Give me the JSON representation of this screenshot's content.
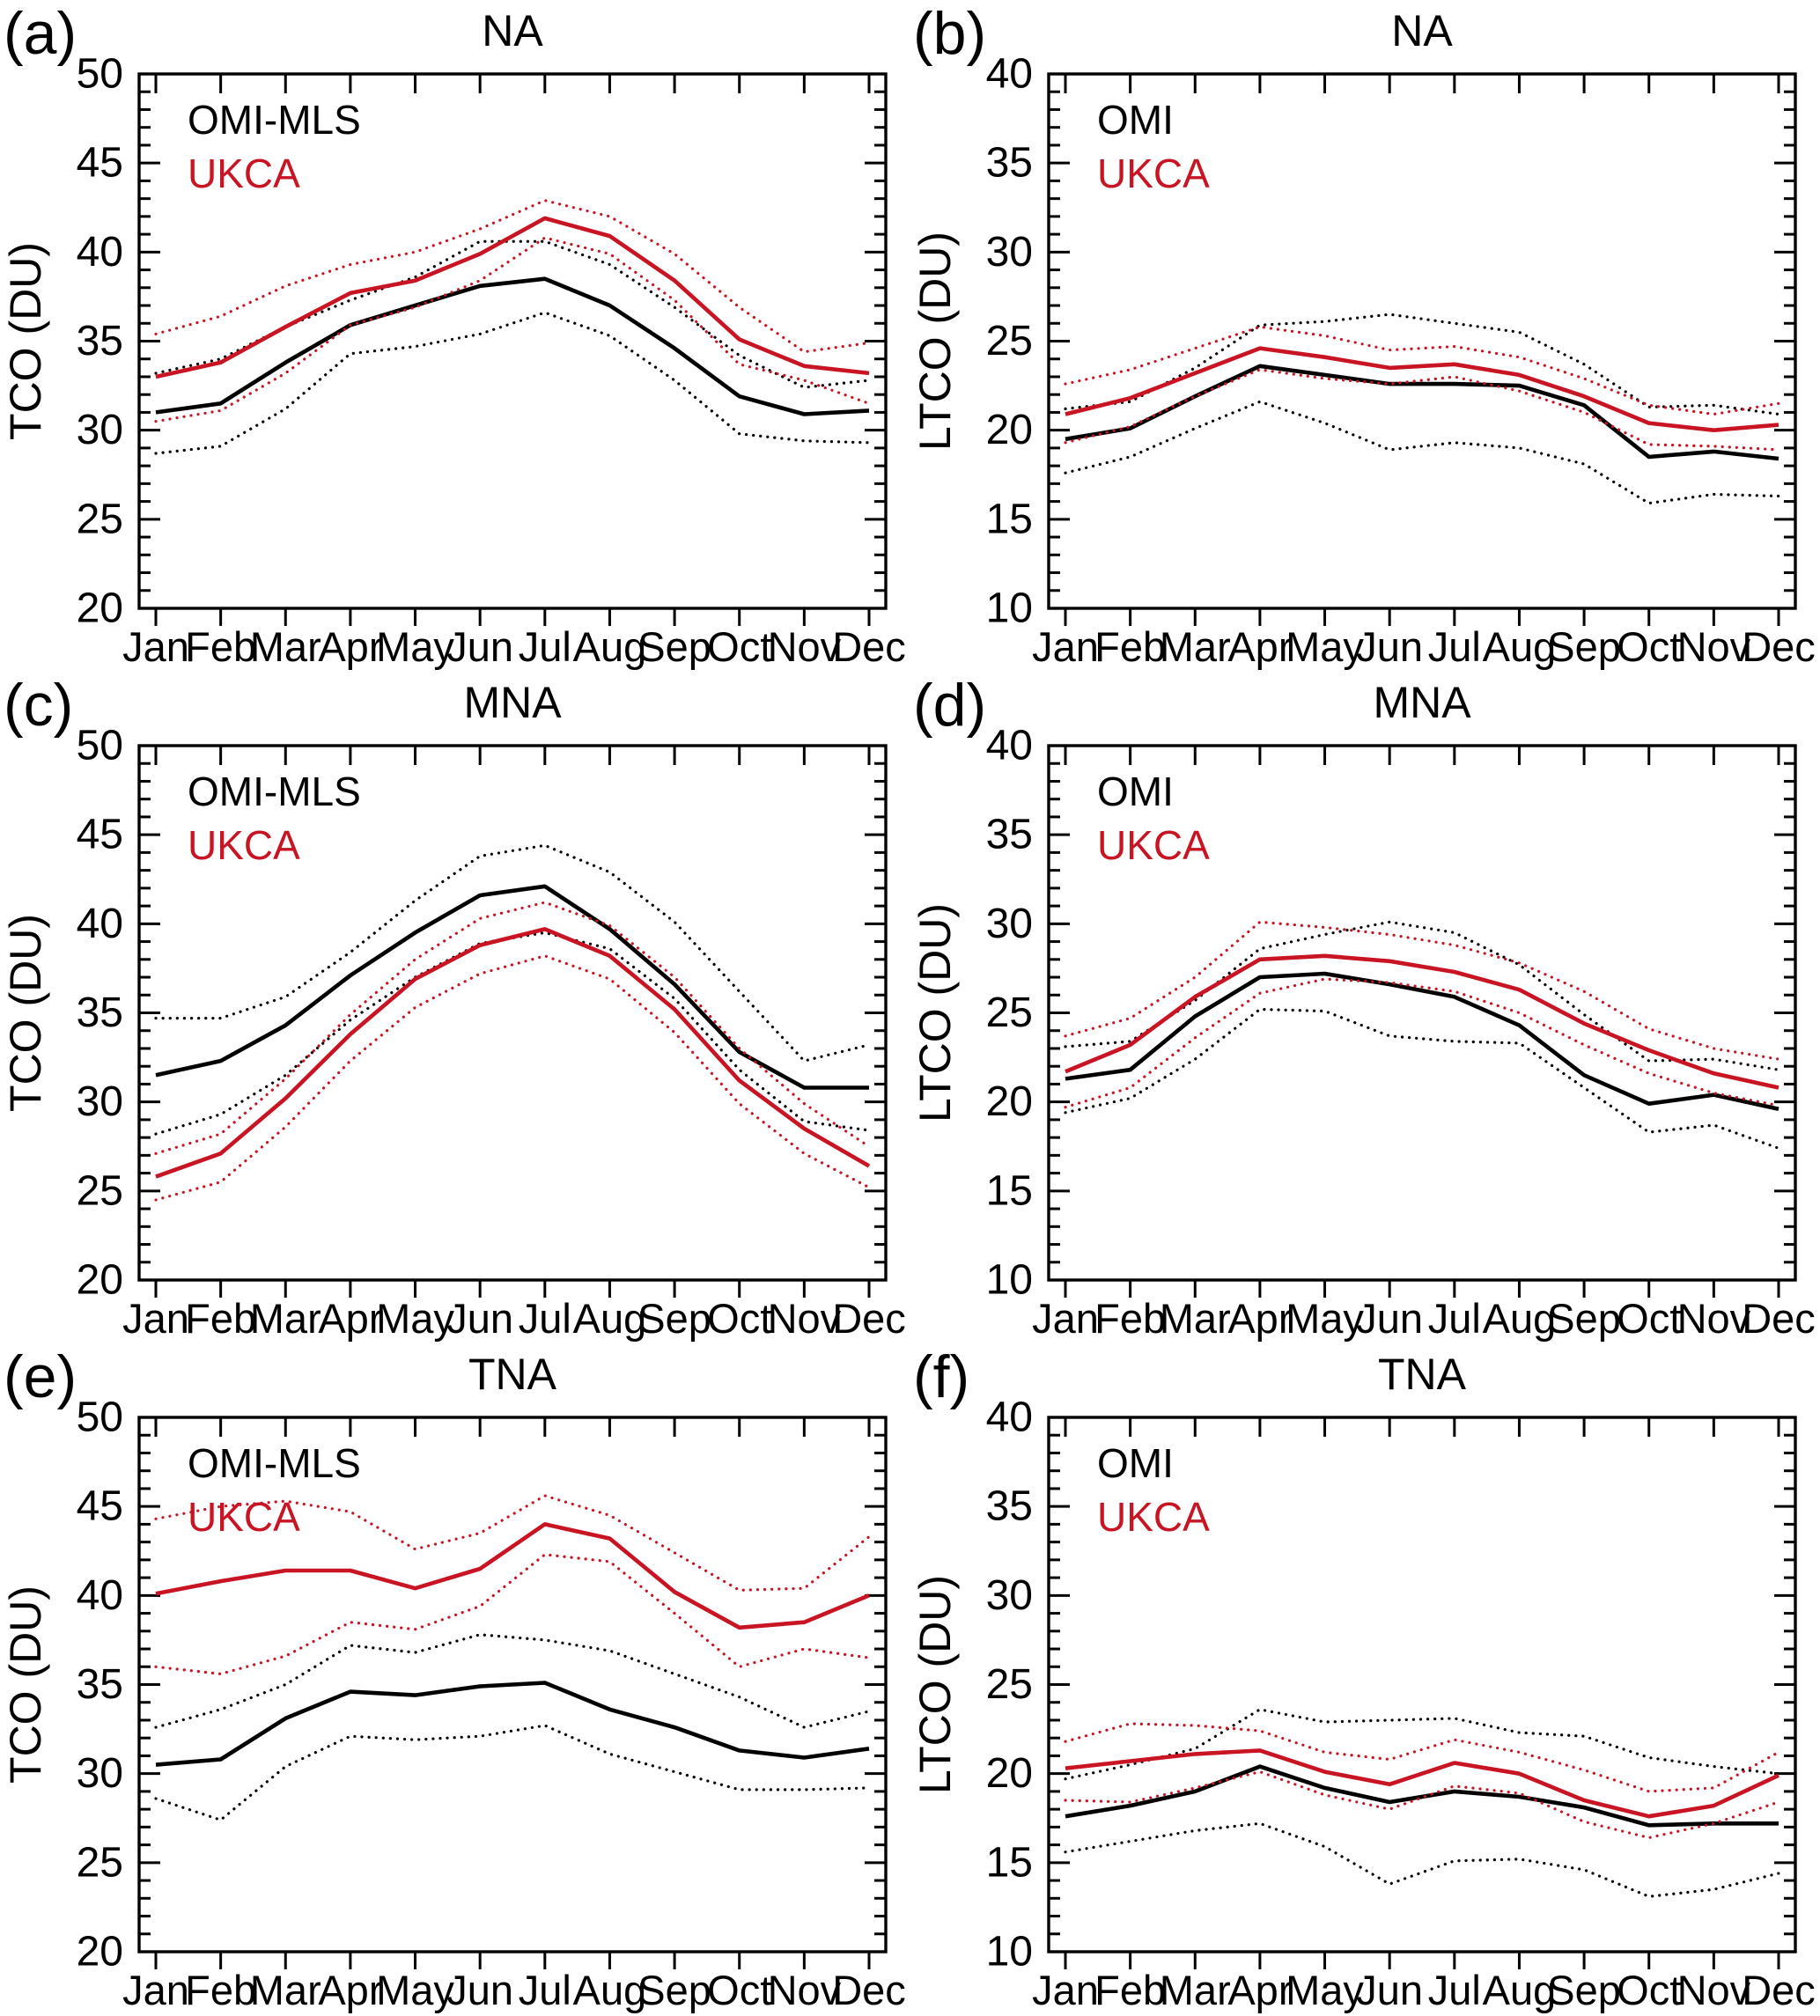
{
  "figure": {
    "background": "#ffffff",
    "observation_color": "#000000",
    "model_color": "#c81423",
    "mean_line_style": "solid",
    "sigma_line_style": "dotted"
  },
  "chart_data": [
    {
      "id": "a",
      "panel_label": "(a)",
      "title": "NA",
      "type": "line",
      "xlabel": "",
      "ylabel": "TCO (DU)",
      "ylim": [
        20,
        50
      ],
      "ytick_major": 5,
      "ytick_minor": 1,
      "grid": false,
      "legend": {
        "position": "top-left",
        "entries": [
          {
            "label": "OMI-MLS",
            "color": "#000000"
          },
          {
            "label": "UKCA",
            "color": "#c81423"
          }
        ]
      },
      "categories": [
        "Jan",
        "Feb",
        "Mar",
        "Apr",
        "May",
        "Jun",
        "Jul",
        "Aug",
        "Sep",
        "Oct",
        "Nov",
        "Dec"
      ],
      "series": [
        {
          "name": "OMI-MLS mean",
          "color": "#000000",
          "line_style": "solid",
          "values": [
            31.0,
            31.5,
            33.8,
            35.9,
            37.0,
            38.1,
            38.5,
            37.0,
            34.6,
            31.9,
            30.9,
            31.1
          ]
        },
        {
          "name": "OMI-MLS plus sigma",
          "color": "#000000",
          "line_style": "dotted",
          "values": [
            33.2,
            34.0,
            35.8,
            37.3,
            38.6,
            40.6,
            40.6,
            39.3,
            36.9,
            34.2,
            32.4,
            32.8
          ]
        },
        {
          "name": "OMI-MLS minus sigma",
          "color": "#000000",
          "line_style": "dotted",
          "values": [
            28.7,
            29.1,
            31.2,
            34.3,
            34.7,
            35.4,
            36.6,
            35.3,
            32.8,
            29.8,
            29.4,
            29.3
          ]
        },
        {
          "name": "UKCA mean",
          "color": "#c81423",
          "line_style": "solid",
          "values": [
            33.0,
            33.8,
            35.8,
            37.7,
            38.4,
            39.9,
            41.9,
            40.9,
            38.4,
            35.1,
            33.6,
            33.2
          ]
        },
        {
          "name": "UKCA plus sigma",
          "color": "#c81423",
          "line_style": "dotted",
          "values": [
            35.4,
            36.4,
            38.1,
            39.3,
            40.0,
            41.3,
            42.9,
            42.0,
            39.9,
            36.9,
            34.4,
            34.9
          ]
        },
        {
          "name": "UKCA minus sigma",
          "color": "#c81423",
          "line_style": "dotted",
          "values": [
            30.5,
            31.1,
            33.2,
            35.9,
            36.9,
            38.4,
            40.8,
            39.9,
            37.3,
            33.7,
            32.8,
            31.5
          ]
        }
      ]
    },
    {
      "id": "b",
      "panel_label": "(b)",
      "title": "NA",
      "type": "line",
      "xlabel": "",
      "ylabel": "LTCO (DU)",
      "ylim": [
        10,
        40
      ],
      "ytick_major": 5,
      "ytick_minor": 1,
      "grid": false,
      "legend": {
        "position": "top-left",
        "entries": [
          {
            "label": "OMI",
            "color": "#000000"
          },
          {
            "label": "UKCA",
            "color": "#c81423"
          }
        ]
      },
      "categories": [
        "Jan",
        "Feb",
        "Mar",
        "Apr",
        "May",
        "Jun",
        "Jul",
        "Aug",
        "Sep",
        "Oct",
        "Nov",
        "Dec"
      ],
      "series": [
        {
          "name": "OMI mean",
          "color": "#000000",
          "line_style": "solid",
          "values": [
            19.5,
            20.1,
            21.9,
            23.6,
            23.1,
            22.6,
            22.6,
            22.5,
            21.4,
            18.5,
            18.8,
            18.4
          ]
        },
        {
          "name": "OMI plus sigma",
          "color": "#000000",
          "line_style": "dotted",
          "values": [
            21.2,
            21.6,
            23.5,
            25.9,
            26.1,
            26.5,
            26.0,
            25.5,
            23.7,
            21.3,
            21.4,
            20.9
          ]
        },
        {
          "name": "OMI minus sigma",
          "color": "#000000",
          "line_style": "dotted",
          "values": [
            17.6,
            18.5,
            20.1,
            21.6,
            20.4,
            18.9,
            19.3,
            19.0,
            18.1,
            15.9,
            16.4,
            16.3
          ]
        },
        {
          "name": "UKCA mean",
          "color": "#c81423",
          "line_style": "solid",
          "values": [
            20.9,
            21.8,
            23.2,
            24.6,
            24.1,
            23.5,
            23.7,
            23.1,
            21.9,
            20.4,
            20.0,
            20.3
          ]
        },
        {
          "name": "UKCA plus sigma",
          "color": "#c81423",
          "line_style": "dotted",
          "values": [
            22.6,
            23.4,
            24.6,
            25.8,
            25.3,
            24.5,
            24.7,
            24.1,
            22.9,
            21.4,
            20.9,
            21.5
          ]
        },
        {
          "name": "UKCA minus sigma",
          "color": "#c81423",
          "line_style": "dotted",
          "values": [
            19.3,
            20.2,
            21.9,
            23.4,
            22.9,
            22.6,
            23.0,
            22.2,
            21.0,
            19.2,
            19.1,
            18.9
          ]
        }
      ]
    },
    {
      "id": "c",
      "panel_label": "(c)",
      "title": "MNA",
      "type": "line",
      "xlabel": "",
      "ylabel": "TCO (DU)",
      "ylim": [
        20,
        50
      ],
      "ytick_major": 5,
      "ytick_minor": 1,
      "grid": false,
      "legend": {
        "position": "top-left",
        "entries": [
          {
            "label": "OMI-MLS",
            "color": "#000000"
          },
          {
            "label": "UKCA",
            "color": "#c81423"
          }
        ]
      },
      "categories": [
        "Jan",
        "Feb",
        "Mar",
        "Apr",
        "May",
        "Jun",
        "Jul",
        "Aug",
        "Sep",
        "Oct",
        "Nov",
        "Dec"
      ],
      "series": [
        {
          "name": "OMI-MLS mean",
          "color": "#000000",
          "line_style": "solid",
          "values": [
            31.5,
            32.3,
            34.3,
            37.1,
            39.5,
            41.6,
            42.1,
            39.7,
            36.6,
            32.8,
            30.8,
            30.8
          ]
        },
        {
          "name": "OMI-MLS plus sigma",
          "color": "#000000",
          "line_style": "dotted",
          "values": [
            34.7,
            34.7,
            35.9,
            38.4,
            41.3,
            43.8,
            44.4,
            42.9,
            40.1,
            36.2,
            32.3,
            33.2
          ]
        },
        {
          "name": "OMI-MLS minus sigma",
          "color": "#000000",
          "line_style": "dotted",
          "values": [
            28.2,
            29.3,
            31.5,
            34.6,
            37.0,
            38.9,
            39.5,
            38.6,
            35.8,
            31.8,
            28.9,
            28.4
          ]
        },
        {
          "name": "UKCA mean",
          "color": "#c81423",
          "line_style": "solid",
          "values": [
            25.8,
            27.1,
            30.2,
            33.8,
            36.9,
            38.8,
            39.7,
            38.2,
            35.2,
            31.2,
            28.5,
            26.4
          ]
        },
        {
          "name": "UKCA plus sigma",
          "color": "#c81423",
          "line_style": "dotted",
          "values": [
            27.1,
            28.2,
            31.3,
            34.9,
            38.0,
            40.3,
            41.2,
            39.9,
            37.0,
            33.0,
            29.9,
            27.5
          ]
        },
        {
          "name": "UKCA minus sigma",
          "color": "#c81423",
          "line_style": "dotted",
          "values": [
            24.5,
            25.5,
            28.6,
            32.3,
            35.3,
            37.2,
            38.2,
            36.9,
            33.9,
            29.9,
            27.1,
            25.2
          ]
        }
      ]
    },
    {
      "id": "d",
      "panel_label": "(d)",
      "title": "MNA",
      "type": "line",
      "xlabel": "",
      "ylabel": "LTCO (DU)",
      "ylim": [
        10,
        40
      ],
      "ytick_major": 5,
      "ytick_minor": 1,
      "grid": false,
      "legend": {
        "position": "top-left",
        "entries": [
          {
            "label": "OMI",
            "color": "#000000"
          },
          {
            "label": "UKCA",
            "color": "#c81423"
          }
        ]
      },
      "categories": [
        "Jan",
        "Feb",
        "Mar",
        "Apr",
        "May",
        "Jun",
        "Jul",
        "Aug",
        "Sep",
        "Oct",
        "Nov",
        "Dec"
      ],
      "series": [
        {
          "name": "OMI mean",
          "color": "#000000",
          "line_style": "solid",
          "values": [
            21.3,
            21.8,
            24.8,
            27.0,
            27.2,
            26.6,
            25.9,
            24.3,
            21.5,
            19.9,
            20.4,
            19.6
          ]
        },
        {
          "name": "OMI plus sigma",
          "color": "#000000",
          "line_style": "dotted",
          "values": [
            23.1,
            23.4,
            25.7,
            28.6,
            29.4,
            30.1,
            29.5,
            27.7,
            24.9,
            22.3,
            22.4,
            21.8
          ]
        },
        {
          "name": "OMI minus sigma",
          "color": "#000000",
          "line_style": "dotted",
          "values": [
            19.4,
            20.2,
            22.4,
            25.2,
            25.1,
            23.7,
            23.4,
            23.3,
            20.8,
            18.3,
            18.7,
            17.4
          ]
        },
        {
          "name": "UKCA mean",
          "color": "#c81423",
          "line_style": "solid",
          "values": [
            21.7,
            23.2,
            25.9,
            28.0,
            28.2,
            27.9,
            27.3,
            26.3,
            24.4,
            22.9,
            21.6,
            20.8
          ]
        },
        {
          "name": "UKCA plus sigma",
          "color": "#c81423",
          "line_style": "dotted",
          "values": [
            23.7,
            24.7,
            27.0,
            30.1,
            29.8,
            29.4,
            28.8,
            27.8,
            26.2,
            24.1,
            23.0,
            22.4
          ]
        },
        {
          "name": "UKCA minus sigma",
          "color": "#c81423",
          "line_style": "dotted",
          "values": [
            19.7,
            20.8,
            23.6,
            26.1,
            26.9,
            26.7,
            26.2,
            25.0,
            23.2,
            21.6,
            20.5,
            19.8
          ]
        }
      ]
    },
    {
      "id": "e",
      "panel_label": "(e)",
      "title": "TNA",
      "type": "line",
      "xlabel": "",
      "ylabel": "TCO (DU)",
      "ylim": [
        20,
        50
      ],
      "ytick_major": 5,
      "ytick_minor": 1,
      "grid": false,
      "legend": {
        "position": "top-left",
        "entries": [
          {
            "label": "OMI-MLS",
            "color": "#000000"
          },
          {
            "label": "UKCA",
            "color": "#c81423"
          }
        ]
      },
      "categories": [
        "Jan",
        "Feb",
        "Mar",
        "Apr",
        "May",
        "Jun",
        "Jul",
        "Aug",
        "Sep",
        "Oct",
        "Nov",
        "Dec"
      ],
      "series": [
        {
          "name": "OMI-MLS mean",
          "color": "#000000",
          "line_style": "solid",
          "values": [
            30.5,
            30.8,
            33.1,
            34.6,
            34.4,
            34.9,
            35.1,
            33.6,
            32.6,
            31.3,
            30.9,
            31.4
          ]
        },
        {
          "name": "OMI-MLS plus sigma",
          "color": "#000000",
          "line_style": "dotted",
          "values": [
            32.6,
            33.6,
            35.0,
            37.2,
            36.8,
            37.8,
            37.5,
            36.9,
            35.6,
            34.3,
            32.6,
            33.5
          ]
        },
        {
          "name": "OMI-MLS minus sigma",
          "color": "#000000",
          "line_style": "dotted",
          "values": [
            28.6,
            27.4,
            30.4,
            32.1,
            31.9,
            32.1,
            32.7,
            31.1,
            30.1,
            29.1,
            29.1,
            29.2
          ]
        },
        {
          "name": "UKCA mean",
          "color": "#c81423",
          "line_style": "solid",
          "values": [
            40.1,
            40.8,
            41.4,
            41.4,
            40.4,
            41.5,
            44.0,
            43.2,
            40.2,
            38.2,
            38.5,
            40.0
          ]
        },
        {
          "name": "UKCA plus sigma",
          "color": "#c81423",
          "line_style": "dotted",
          "values": [
            44.3,
            45.0,
            45.3,
            44.7,
            42.6,
            43.5,
            45.6,
            44.5,
            42.4,
            40.3,
            40.4,
            43.3
          ]
        },
        {
          "name": "UKCA minus sigma",
          "color": "#c81423",
          "line_style": "dotted",
          "values": [
            36.0,
            35.6,
            36.6,
            38.5,
            38.1,
            39.4,
            42.3,
            41.9,
            39.0,
            36.0,
            37.0,
            36.5
          ]
        }
      ]
    },
    {
      "id": "f",
      "panel_label": "(f)",
      "title": "TNA",
      "type": "line",
      "xlabel": "",
      "ylabel": "LTCO (DU)",
      "ylim": [
        10,
        40
      ],
      "ytick_major": 5,
      "ytick_minor": 1,
      "grid": false,
      "legend": {
        "position": "top-left",
        "entries": [
          {
            "label": "OMI",
            "color": "#000000"
          },
          {
            "label": "UKCA",
            "color": "#c81423"
          }
        ]
      },
      "categories": [
        "Jan",
        "Feb",
        "Mar",
        "Apr",
        "May",
        "Jun",
        "Jul",
        "Aug",
        "Sep",
        "Oct",
        "Nov",
        "Dec"
      ],
      "series": [
        {
          "name": "OMI mean",
          "color": "#000000",
          "line_style": "solid",
          "values": [
            17.6,
            18.2,
            19.0,
            20.4,
            19.2,
            18.4,
            19.0,
            18.7,
            18.1,
            17.1,
            17.2,
            17.2
          ]
        },
        {
          "name": "OMI plus sigma",
          "color": "#000000",
          "line_style": "dotted",
          "values": [
            19.7,
            20.5,
            21.4,
            23.6,
            22.9,
            23.0,
            23.1,
            22.3,
            22.1,
            20.9,
            20.4,
            20.0
          ]
        },
        {
          "name": "OMI minus sigma",
          "color": "#000000",
          "line_style": "dotted",
          "values": [
            15.6,
            16.2,
            16.8,
            17.2,
            15.9,
            13.8,
            15.1,
            15.2,
            14.6,
            13.1,
            13.5,
            14.4
          ]
        },
        {
          "name": "UKCA mean",
          "color": "#c81423",
          "line_style": "solid",
          "values": [
            20.3,
            20.7,
            21.1,
            21.3,
            20.1,
            19.4,
            20.6,
            20.0,
            18.5,
            17.6,
            18.2,
            19.9
          ]
        },
        {
          "name": "UKCA plus sigma",
          "color": "#c81423",
          "line_style": "dotted",
          "values": [
            21.8,
            22.8,
            22.7,
            22.4,
            21.2,
            20.8,
            21.9,
            21.2,
            20.2,
            19.0,
            19.2,
            21.2
          ]
        },
        {
          "name": "UKCA minus sigma",
          "color": "#c81423",
          "line_style": "dotted",
          "values": [
            18.5,
            18.4,
            19.2,
            20.1,
            18.8,
            18.0,
            19.3,
            18.9,
            17.3,
            16.4,
            17.2,
            18.4
          ]
        }
      ]
    }
  ]
}
